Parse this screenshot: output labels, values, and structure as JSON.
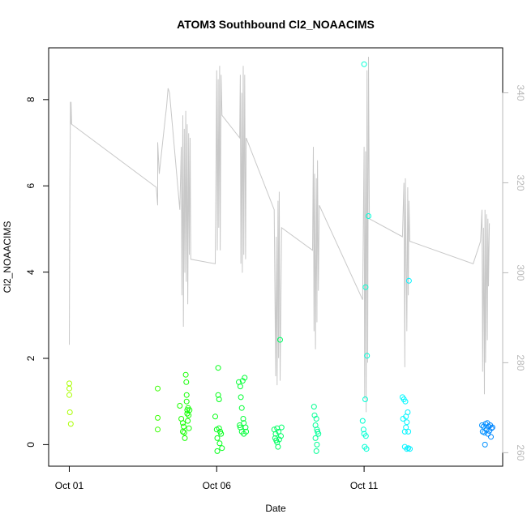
{
  "chart_data": {
    "type": "scatter",
    "title": "ATOM3 Southbound Cl2_NOAACIMS",
    "xlabel": "Date",
    "ylabel": "Cl2_NOAACIMS",
    "x_unit": "days after Oct 01",
    "xlim": [
      -0.7,
      14.7
    ],
    "ylim": [
      -0.5,
      9.2
    ],
    "y2lim": [
      257,
      350
    ],
    "x_ticks": [
      {
        "value": 0,
        "label": "Oct 01"
      },
      {
        "value": 5,
        "label": "Oct 06"
      },
      {
        "value": 10,
        "label": "Oct 11"
      }
    ],
    "y_ticks": [
      0,
      2,
      4,
      6,
      8
    ],
    "y2_ticks": [
      260,
      280,
      300,
      320,
      340
    ],
    "grid": false,
    "legend": "none",
    "colors": {
      "line": "#c8c8c8",
      "axis": "#000000",
      "axis2": "#b8b8b8"
    },
    "points": [
      {
        "x": 0.0,
        "y": 1.42
      },
      {
        "x": 0.0,
        "y": 1.3
      },
      {
        "x": 0.0,
        "y": 1.15
      },
      {
        "x": 0.02,
        "y": 0.75
      },
      {
        "x": 0.05,
        "y": 0.48
      },
      {
        "x": 3.0,
        "y": 1.3
      },
      {
        "x": 3.0,
        "y": 0.62
      },
      {
        "x": 3.0,
        "y": 0.35
      },
      {
        "x": 3.75,
        "y": 0.9
      },
      {
        "x": 3.8,
        "y": 0.6
      },
      {
        "x": 3.85,
        "y": 0.5
      },
      {
        "x": 3.85,
        "y": 0.3
      },
      {
        "x": 3.88,
        "y": 0.42
      },
      {
        "x": 3.9,
        "y": 0.28
      },
      {
        "x": 3.92,
        "y": 0.15
      },
      {
        "x": 3.95,
        "y": 1.62
      },
      {
        "x": 3.97,
        "y": 1.45
      },
      {
        "x": 3.98,
        "y": 1.15
      },
      {
        "x": 3.98,
        "y": 1.0
      },
      {
        "x": 4.0,
        "y": 0.8
      },
      {
        "x": 4.0,
        "y": 0.72
      },
      {
        "x": 4.02,
        "y": 0.55
      },
      {
        "x": 4.03,
        "y": 0.85
      },
      {
        "x": 4.05,
        "y": 0.68
      },
      {
        "x": 4.06,
        "y": 0.38
      },
      {
        "x": 4.08,
        "y": 0.8
      },
      {
        "x": 4.95,
        "y": 0.65
      },
      {
        "x": 5.0,
        "y": 0.35
      },
      {
        "x": 5.02,
        "y": 0.15
      },
      {
        "x": 5.02,
        "y": -0.15
      },
      {
        "x": 5.05,
        "y": 1.78
      },
      {
        "x": 5.05,
        "y": 1.15
      },
      {
        "x": 5.08,
        "y": 1.05
      },
      {
        "x": 5.08,
        "y": 0.38
      },
      {
        "x": 5.1,
        "y": 0.03
      },
      {
        "x": 5.12,
        "y": 0.3
      },
      {
        "x": 5.15,
        "y": 0.25
      },
      {
        "x": 5.18,
        "y": -0.08
      },
      {
        "x": 5.75,
        "y": 1.45
      },
      {
        "x": 5.78,
        "y": 0.45
      },
      {
        "x": 5.8,
        "y": 1.35
      },
      {
        "x": 5.8,
        "y": 0.4
      },
      {
        "x": 5.82,
        "y": 1.1
      },
      {
        "x": 5.85,
        "y": 0.85
      },
      {
        "x": 5.85,
        "y": 0.3
      },
      {
        "x": 5.88,
        "y": 1.48
      },
      {
        "x": 5.9,
        "y": 0.6
      },
      {
        "x": 5.92,
        "y": 0.5
      },
      {
        "x": 5.92,
        "y": 0.25
      },
      {
        "x": 5.95,
        "y": 1.55
      },
      {
        "x": 5.98,
        "y": 0.4
      },
      {
        "x": 6.0,
        "y": 0.3
      },
      {
        "x": 6.95,
        "y": 0.35
      },
      {
        "x": 6.98,
        "y": 0.15
      },
      {
        "x": 7.0,
        "y": 0.25
      },
      {
        "x": 7.02,
        "y": 0.1
      },
      {
        "x": 7.05,
        "y": 0.05
      },
      {
        "x": 7.05,
        "y": 0.38
      },
      {
        "x": 7.08,
        "y": -0.05
      },
      {
        "x": 7.1,
        "y": 0.3
      },
      {
        "x": 7.12,
        "y": 0.12
      },
      {
        "x": 7.15,
        "y": 2.43
      },
      {
        "x": 7.18,
        "y": 0.2
      },
      {
        "x": 7.2,
        "y": 0.4
      },
      {
        "x": 8.3,
        "y": 0.88
      },
      {
        "x": 8.32,
        "y": 0.68
      },
      {
        "x": 8.35,
        "y": 0.45
      },
      {
        "x": 8.35,
        "y": 0.15
      },
      {
        "x": 8.38,
        "y": 0.6
      },
      {
        "x": 8.38,
        "y": -0.15
      },
      {
        "x": 8.4,
        "y": 0.35
      },
      {
        "x": 8.4,
        "y": 0.0
      },
      {
        "x": 8.42,
        "y": 0.3
      },
      {
        "x": 8.45,
        "y": 0.25
      },
      {
        "x": 9.95,
        "y": 0.55
      },
      {
        "x": 9.98,
        "y": 0.35
      },
      {
        "x": 10.0,
        "y": 0.25
      },
      {
        "x": 10.0,
        "y": 8.82
      },
      {
        "x": 10.02,
        "y": -0.05
      },
      {
        "x": 10.04,
        "y": 1.05
      },
      {
        "x": 10.05,
        "y": 3.65
      },
      {
        "x": 10.06,
        "y": 0.2
      },
      {
        "x": 10.08,
        "y": -0.1
      },
      {
        "x": 10.1,
        "y": 2.06
      },
      {
        "x": 10.15,
        "y": 5.3
      },
      {
        "x": 11.3,
        "y": 1.1
      },
      {
        "x": 11.32,
        "y": 0.6
      },
      {
        "x": 11.35,
        "y": 1.05
      },
      {
        "x": 11.38,
        "y": 0.3
      },
      {
        "x": 11.38,
        "y": -0.05
      },
      {
        "x": 11.4,
        "y": 1.0
      },
      {
        "x": 11.42,
        "y": 0.65
      },
      {
        "x": 11.42,
        "y": 0.4
      },
      {
        "x": 11.45,
        "y": 0.52
      },
      {
        "x": 11.45,
        "y": -0.1
      },
      {
        "x": 11.48,
        "y": 0.75
      },
      {
        "x": 11.5,
        "y": 0.3
      },
      {
        "x": 11.5,
        "y": -0.08
      },
      {
        "x": 11.52,
        "y": 3.8
      },
      {
        "x": 11.55,
        "y": -0.1
      },
      {
        "x": 14.0,
        "y": 0.45
      },
      {
        "x": 14.02,
        "y": 0.3
      },
      {
        "x": 14.05,
        "y": 0.42
      },
      {
        "x": 14.08,
        "y": 0.28
      },
      {
        "x": 14.1,
        "y": 0.0
      },
      {
        "x": 14.12,
        "y": 0.48
      },
      {
        "x": 14.15,
        "y": 0.35
      },
      {
        "x": 14.18,
        "y": 0.5
      },
      {
        "x": 14.2,
        "y": 0.25
      },
      {
        "x": 14.22,
        "y": 0.42
      },
      {
        "x": 14.25,
        "y": 0.32
      },
      {
        "x": 14.28,
        "y": 0.45
      },
      {
        "x": 14.3,
        "y": 0.18
      },
      {
        "x": 14.32,
        "y": 0.38
      },
      {
        "x": 14.35,
        "y": 0.4
      }
    ],
    "secondary_line": [
      [
        0.0,
        284
      ],
      [
        0.02,
        320
      ],
      [
        0.04,
        338
      ],
      [
        0.05,
        333
      ],
      [
        0.06,
        338
      ],
      [
        0.08,
        333
      ],
      [
        2.95,
        319
      ],
      [
        3.0,
        315
      ],
      [
        3.0,
        329
      ],
      [
        3.05,
        322
      ],
      [
        3.1,
        325
      ],
      [
        3.15,
        328
      ],
      [
        3.2,
        331
      ],
      [
        3.25,
        334
      ],
      [
        3.3,
        337
      ],
      [
        3.35,
        341
      ],
      [
        3.4,
        340
      ],
      [
        3.75,
        314
      ],
      [
        3.8,
        328
      ],
      [
        3.82,
        295
      ],
      [
        3.85,
        335
      ],
      [
        3.87,
        288
      ],
      [
        3.9,
        332
      ],
      [
        3.92,
        300
      ],
      [
        3.95,
        336
      ],
      [
        3.97,
        298
      ],
      [
        4.0,
        333
      ],
      [
        4.02,
        293
      ],
      [
        4.05,
        331
      ],
      [
        4.07,
        304
      ],
      [
        4.1,
        330
      ],
      [
        4.12,
        303
      ],
      [
        4.95,
        302
      ],
      [
        5.0,
        345
      ],
      [
        5.02,
        305
      ],
      [
        5.05,
        343
      ],
      [
        5.07,
        310
      ],
      [
        5.1,
        346
      ],
      [
        5.12,
        305
      ],
      [
        5.15,
        344
      ],
      [
        5.18,
        335
      ],
      [
        5.78,
        330
      ],
      [
        5.8,
        344
      ],
      [
        5.82,
        302
      ],
      [
        5.85,
        340
      ],
      [
        5.87,
        300
      ],
      [
        5.9,
        346
      ],
      [
        5.92,
        304
      ],
      [
        5.95,
        344
      ],
      [
        5.98,
        303
      ],
      [
        6.0,
        330
      ],
      [
        6.95,
        314
      ],
      [
        7.0,
        277
      ],
      [
        7.02,
        308
      ],
      [
        7.05,
        275
      ],
      [
        7.08,
        316
      ],
      [
        7.1,
        281
      ],
      [
        7.12,
        318
      ],
      [
        7.15,
        276
      ],
      [
        7.2,
        310
      ],
      [
        8.25,
        305
      ],
      [
        8.28,
        328
      ],
      [
        8.3,
        287
      ],
      [
        8.32,
        322
      ],
      [
        8.35,
        283
      ],
      [
        8.38,
        321
      ],
      [
        8.4,
        289
      ],
      [
        8.42,
        325
      ],
      [
        8.45,
        296
      ],
      [
        8.48,
        315
      ],
      [
        9.95,
        294
      ],
      [
        10.0,
        328
      ],
      [
        10.02,
        272
      ],
      [
        10.05,
        327
      ],
      [
        10.07,
        269
      ],
      [
        10.1,
        345
      ],
      [
        10.12,
        280
      ],
      [
        10.15,
        348
      ],
      [
        10.18,
        312
      ],
      [
        11.3,
        308
      ],
      [
        11.35,
        320
      ],
      [
        11.38,
        279
      ],
      [
        11.4,
        321
      ],
      [
        11.45,
        287
      ],
      [
        11.48,
        319
      ],
      [
        11.5,
        295
      ],
      [
        11.52,
        316
      ],
      [
        11.55,
        307
      ],
      [
        13.7,
        302
      ],
      [
        13.95,
        307
      ],
      [
        14.0,
        314
      ],
      [
        14.02,
        278
      ],
      [
        14.05,
        310
      ],
      [
        14.08,
        273
      ],
      [
        14.1,
        314
      ],
      [
        14.12,
        280
      ],
      [
        14.15,
        313
      ],
      [
        14.18,
        285
      ],
      [
        14.2,
        312
      ],
      [
        14.22,
        297
      ],
      [
        14.25,
        311
      ]
    ]
  }
}
